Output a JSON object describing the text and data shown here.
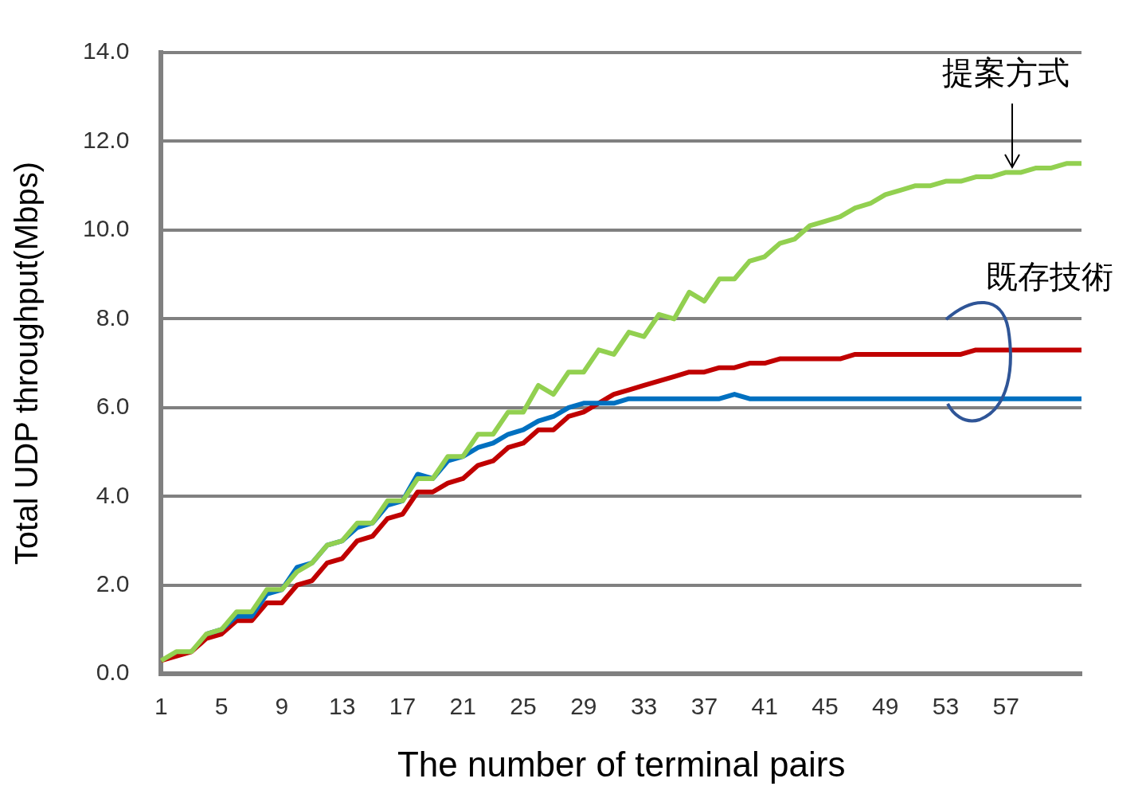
{
  "chart_data": {
    "type": "line",
    "xlabel": "The number of terminal pairs",
    "ylabel": "Total UDP throughput(Mbps)",
    "categories": [
      "1",
      null,
      null,
      null,
      "5",
      null,
      null,
      null,
      "9",
      null,
      null,
      null,
      "13",
      null,
      null,
      null,
      "17",
      null,
      null,
      null,
      "21",
      null,
      null,
      null,
      "25",
      null,
      null,
      null,
      "29",
      null,
      null,
      null,
      "33",
      null,
      null,
      null,
      "37",
      null,
      null,
      null,
      "41",
      null,
      null,
      null,
      "45",
      null,
      null,
      null,
      "49",
      null,
      null,
      null,
      "53",
      null,
      null,
      null,
      "57",
      null,
      null,
      null,
      null,
      null
    ],
    "series": [
      {
        "color": "#92d050",
        "values": [
          0.3,
          0.5,
          0.5,
          0.9,
          1.0,
          1.4,
          1.4,
          1.9,
          1.9,
          2.3,
          2.5,
          2.9,
          3.0,
          3.4,
          3.4,
          3.9,
          3.9,
          4.4,
          4.4,
          4.9,
          4.9,
          5.4,
          5.4,
          5.9,
          5.9,
          6.5,
          6.3,
          6.8,
          6.8,
          7.3,
          7.2,
          7.7,
          7.6,
          8.1,
          8.0,
          8.6,
          8.4,
          8.9,
          8.9,
          9.3,
          9.4,
          9.7,
          9.8,
          10.1,
          10.2,
          10.3,
          10.5,
          10.6,
          10.8,
          10.9,
          11.0,
          11.0,
          11.1,
          11.1,
          11.2,
          11.2,
          11.3,
          11.3,
          11.4,
          11.4,
          11.5,
          11.5
        ]
      },
      {
        "color": "#0070c0",
        "values": [
          null,
          null,
          null,
          0.9,
          1.0,
          1.3,
          1.3,
          1.8,
          1.9,
          2.4,
          2.5,
          2.9,
          3.0,
          3.3,
          3.4,
          3.8,
          3.9,
          4.5,
          4.4,
          4.8,
          4.9,
          5.1,
          5.2,
          5.4,
          5.5,
          5.7,
          5.8,
          6.0,
          6.1,
          6.1,
          6.1,
          6.2,
          6.2,
          6.2,
          6.2,
          6.2,
          6.2,
          6.2,
          6.3,
          6.2,
          6.2,
          6.2,
          6.2,
          6.2,
          6.2,
          6.2,
          6.2,
          6.2,
          6.2,
          6.2,
          6.2,
          6.2,
          6.2,
          6.2,
          6.2,
          6.2,
          6.2,
          6.2,
          6.2,
          6.2,
          6.2,
          6.2
        ]
      },
      {
        "color": "#c00000",
        "values": [
          0.3,
          0.4,
          0.5,
          0.8,
          0.9,
          1.2,
          1.2,
          1.6,
          1.6,
          2.0,
          2.1,
          2.5,
          2.6,
          3.0,
          3.1,
          3.5,
          3.6,
          4.1,
          4.1,
          4.3,
          4.4,
          4.7,
          4.8,
          5.1,
          5.2,
          5.5,
          5.5,
          5.8,
          5.9,
          6.1,
          6.3,
          6.4,
          6.5,
          6.6,
          6.7,
          6.8,
          6.8,
          6.9,
          6.9,
          7.0,
          7.0,
          7.1,
          7.1,
          7.1,
          7.1,
          7.1,
          7.2,
          7.2,
          7.2,
          7.2,
          7.2,
          7.2,
          7.2,
          7.2,
          7.3,
          7.3,
          7.3,
          7.3,
          7.3,
          7.3,
          7.3,
          7.3
        ]
      }
    ],
    "ylim": [
      0,
      14
    ],
    "yticks": [
      {
        "value": 0,
        "label": "0.0"
      },
      {
        "value": 2,
        "label": "2.0"
      },
      {
        "value": 4,
        "label": "4.0"
      },
      {
        "value": 6,
        "label": "6.0"
      },
      {
        "value": 8,
        "label": "8.0"
      },
      {
        "value": 10,
        "label": "10.0"
      },
      {
        "value": 12,
        "label": "12.0"
      },
      {
        "value": 14,
        "label": "14.0"
      }
    ],
    "grid": "y",
    "legend": false,
    "marker": "none",
    "line_style": "solid",
    "annotations": [
      "提案方式",
      "既存技術"
    ]
  }
}
